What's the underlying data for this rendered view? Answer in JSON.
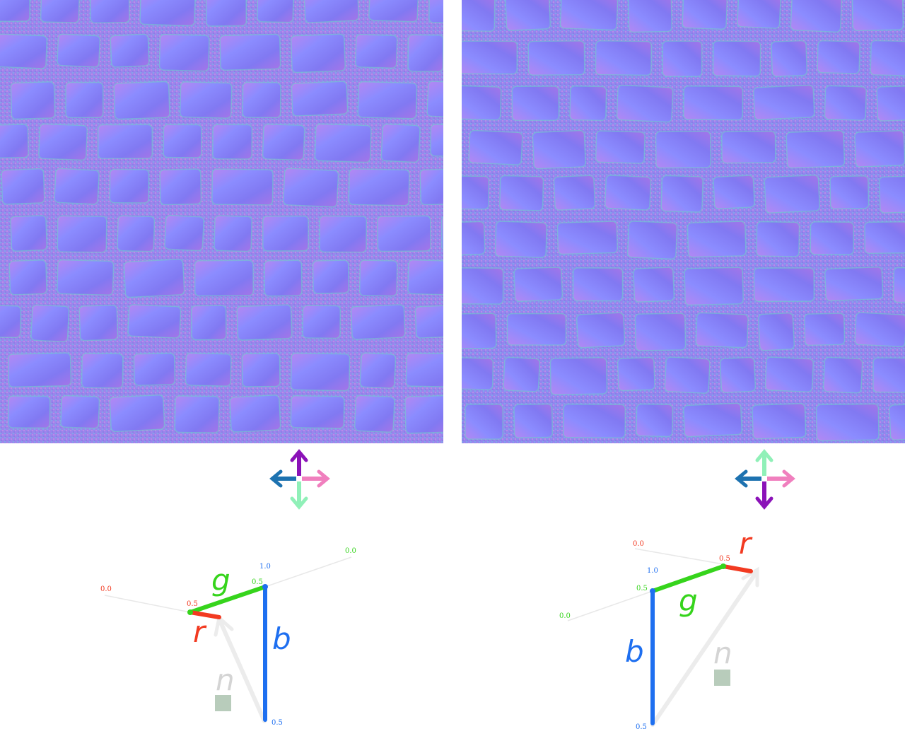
{
  "panels": [
    {
      "id": "left",
      "texture": {
        "subject": "cobblestone normal map",
        "base_color": "#8f7ff2"
      },
      "compass": {
        "up": "#8b12b8",
        "down": "#90f0b8",
        "left": "#1d72b0",
        "right": "#f07fbe"
      },
      "vector": {
        "r_label": "r",
        "g_label": "g",
        "b_label": "b",
        "n_label": "n",
        "r_color": "#f23a21",
        "g_color": "#36d41c",
        "b_color": "#1e6ff0",
        "n_color": "#d4d4d4",
        "ticks": {
          "r_end": "0.0",
          "r_mid": "0.5",
          "g_end": "0.0",
          "g_mid": "0.5",
          "b_top": "1.0",
          "b_bottom": "0.5"
        }
      }
    },
    {
      "id": "right",
      "texture": {
        "subject": "cobblestone normal map",
        "base_color": "#8f7ff2"
      },
      "compass": {
        "up": "#90f0b8",
        "down": "#8b12b8",
        "left": "#1d72b0",
        "right": "#f07fbe"
      },
      "vector": {
        "r_label": "r",
        "g_label": "g",
        "b_label": "b",
        "n_label": "n",
        "r_color": "#f23a21",
        "g_color": "#36d41c",
        "b_color": "#1e6ff0",
        "n_color": "#d4d4d4",
        "ticks": {
          "r_end": "0.0",
          "r_mid": "0.5",
          "g_end": "0.0",
          "g_mid": "0.5",
          "b_top": "1.0",
          "b_bottom": "0.5"
        }
      }
    }
  ]
}
